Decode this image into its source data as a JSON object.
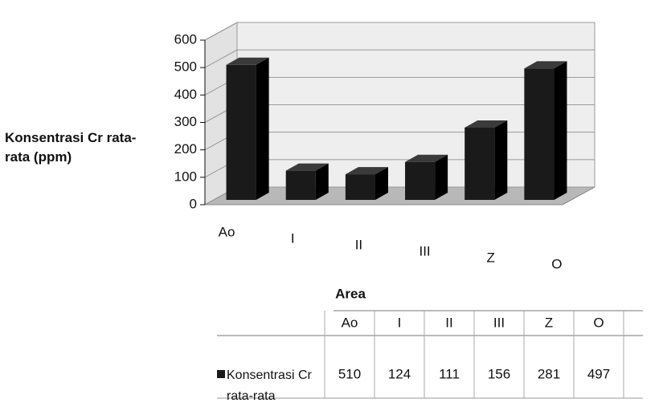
{
  "chart_data": {
    "type": "bar3d",
    "y_label": "Konsentrasi Cr rata-rata (ppm)",
    "x_label": "Area",
    "categories": [
      "Ao",
      "I",
      "II",
      "III",
      "Z",
      "O"
    ],
    "series": [
      {
        "name": "Konsentrasi Cr rata-rata",
        "color": "#1a1a1a",
        "values": [
          510,
          124,
          111,
          156,
          281,
          497
        ]
      }
    ],
    "ylim": [
      0,
      600
    ],
    "yticks": [
      0,
      100,
      200,
      300,
      400,
      500,
      600
    ],
    "grid": true
  }
}
